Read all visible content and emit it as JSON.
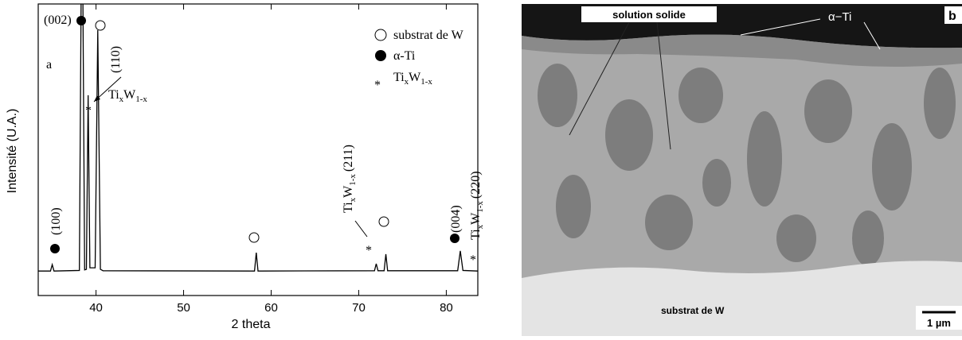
{
  "chart_data": {
    "type": "line",
    "xlabel": "2 theta",
    "ylabel": "Intensité (U.A.)",
    "panel": "a",
    "x": [
      33.4,
      34.8,
      35.0,
      35.2,
      38.1,
      38.4,
      38.7,
      38.9,
      39.1,
      39.3,
      39.9,
      40.2,
      40.5,
      40.8,
      58.1,
      58.3,
      58.5,
      71.8,
      72.0,
      72.2,
      72.9,
      73.1,
      73.3,
      81.3,
      81.6,
      81.9,
      83.6
    ],
    "values": [
      8.4,
      8.4,
      10.6,
      8.4,
      8.6,
      150,
      8.8,
      9.0,
      68.7,
      9.5,
      9.5,
      91,
      9.0,
      8.5,
      8.4,
      14.7,
      8.4,
      8.5,
      10.9,
      8.5,
      8.5,
      14.2,
      8.5,
      8.5,
      15.3,
      8.6,
      8.4
    ],
    "color": "#000000",
    "xlim": [
      33.4,
      83.6
    ],
    "ylim": [
      0,
      100
    ],
    "xticks": [
      40,
      50,
      60,
      70,
      80
    ],
    "annotations": [
      "(002)",
      "(110)",
      "(100)",
      "(211)",
      "(004)",
      "(220)"
    ],
    "compound": {
      "a": "Ti",
      "b": "x",
      "c": "W",
      "d": "1-x"
    },
    "legend": [
      "substrat de W",
      "α-Ti"
    ]
  },
  "micrograph": {
    "labels": [
      "solution solide",
      "α−Ti",
      "b",
      "substrat de W",
      "1 µm"
    ]
  }
}
